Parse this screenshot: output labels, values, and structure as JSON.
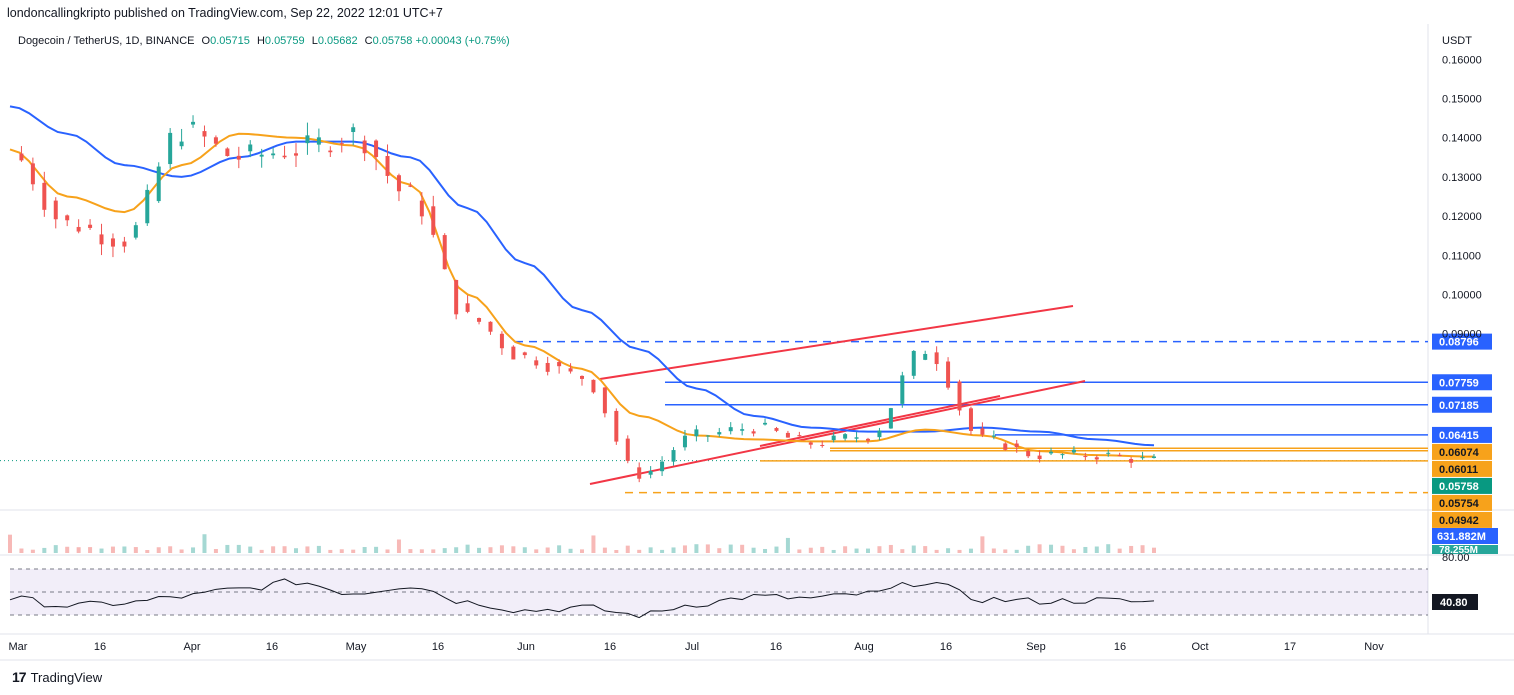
{
  "header": {
    "publish_line": "londoncallingkripto published on TradingView.com, Sep 22, 2022 12:01 UTC+7"
  },
  "legend": {
    "symbol": "Dogecoin / TetherUS, 1D, BINANCE",
    "open_label": "O",
    "open": "0.05715",
    "high_label": "H",
    "high": "0.05759",
    "low_label": "L",
    "low": "0.05682",
    "close_label": "C",
    "close": "0.05758",
    "change": "+0.00043 (+0.75%)"
  },
  "footer": {
    "brand": "TradingView"
  },
  "chart_data": {
    "type": "line",
    "title": "Dogecoin / TetherUS, 1D, BINANCE",
    "y_unit": "USDT",
    "y_ticks": [
      "0.16000",
      "0.15000",
      "0.14000",
      "0.13000",
      "0.12000",
      "0.11000",
      "0.10000",
      "0.09000"
    ],
    "x_ticks": [
      "Mar",
      "16",
      "Apr",
      "16",
      "May",
      "16",
      "Jun",
      "16",
      "Jul",
      "16",
      "Aug",
      "16",
      "Sep",
      "16",
      "Oct",
      "17",
      "Nov"
    ],
    "ylim": [
      0.0455,
      0.168
    ],
    "series": [
      {
        "color": "#2962ff",
        "x": [
          0,
          10,
          20,
          30,
          40,
          50,
          60,
          70,
          80,
          90,
          100,
          110,
          120,
          130,
          140,
          150,
          160,
          170,
          180,
          190,
          200
        ],
        "values": [
          0.148,
          0.141,
          0.133,
          0.13,
          0.135,
          0.139,
          0.139,
          0.135,
          0.122,
          0.108,
          0.096,
          0.086,
          0.076,
          0.069,
          0.066,
          0.065,
          0.065,
          0.066,
          0.065,
          0.063,
          0.0615
        ]
      },
      {
        "color": "#f7a21b",
        "x": [
          0,
          10,
          20,
          30,
          40,
          50,
          60,
          70,
          80,
          90,
          100,
          110,
          120,
          130,
          140,
          150,
          160,
          170,
          180,
          190,
          200
        ],
        "values": [
          0.137,
          0.125,
          0.121,
          0.133,
          0.141,
          0.14,
          0.138,
          0.128,
          0.1,
          0.087,
          0.081,
          0.069,
          0.064,
          0.063,
          0.0625,
          0.0625,
          0.0655,
          0.064,
          0.06,
          0.059,
          0.0586
        ]
      },
      {
        "color": "#131722",
        "x": [
          0,
          10,
          20,
          30,
          40,
          50,
          60,
          70,
          80,
          90,
          100,
          110,
          120,
          130,
          140,
          150,
          160,
          170,
          180,
          190,
          200
        ],
        "values": [
          0.136,
          0.118,
          0.114,
          0.142,
          0.135,
          0.137,
          0.141,
          0.125,
          0.094,
          0.084,
          0.079,
          0.054,
          0.064,
          0.066,
          0.062,
          0.064,
          0.086,
          0.063,
          0.059,
          0.059,
          0.0576
        ]
      }
    ],
    "horizontal_levels": [
      {
        "value": "0.08796",
        "color": "#2962ff",
        "style": "dashed"
      },
      {
        "value": "0.07759",
        "color": "#2962ff",
        "style": "solid"
      },
      {
        "value": "0.07185",
        "color": "#2962ff",
        "style": "solid"
      },
      {
        "value": "0.06415",
        "color": "#2962ff",
        "style": "solid"
      },
      {
        "value": "0.06074",
        "color": "#f7a21b",
        "style": "solid"
      },
      {
        "value": "0.06011",
        "color": "#f7a21b",
        "style": "solid"
      },
      {
        "value": "0.05758",
        "color": "#089981",
        "style": "dotted"
      },
      {
        "value": "0.05754",
        "color": "#f7a21b",
        "style": "solid"
      },
      {
        "value": "0.04942",
        "color": "#f7a21b",
        "style": "dashed"
      }
    ],
    "volume_labels": [
      "631.882M",
      "78.255M"
    ],
    "rsi": {
      "upper_band": "80.00",
      "current": "40.80",
      "x": [
        0,
        10,
        20,
        30,
        40,
        50,
        60,
        70,
        80,
        90,
        100,
        110,
        120,
        130,
        140,
        150,
        160,
        170,
        180,
        190,
        200
      ],
      "values": [
        48,
        40,
        43,
        50,
        58,
        66,
        54,
        62,
        44,
        35,
        38,
        30,
        42,
        50,
        48,
        53,
        66,
        47,
        45,
        46,
        44
      ]
    },
    "colors": {
      "up": "#26a69a",
      "down": "#ef5350",
      "accent_blue": "#2962ff",
      "accent_orange": "#f7a21b",
      "trend_red": "#f23645"
    }
  }
}
